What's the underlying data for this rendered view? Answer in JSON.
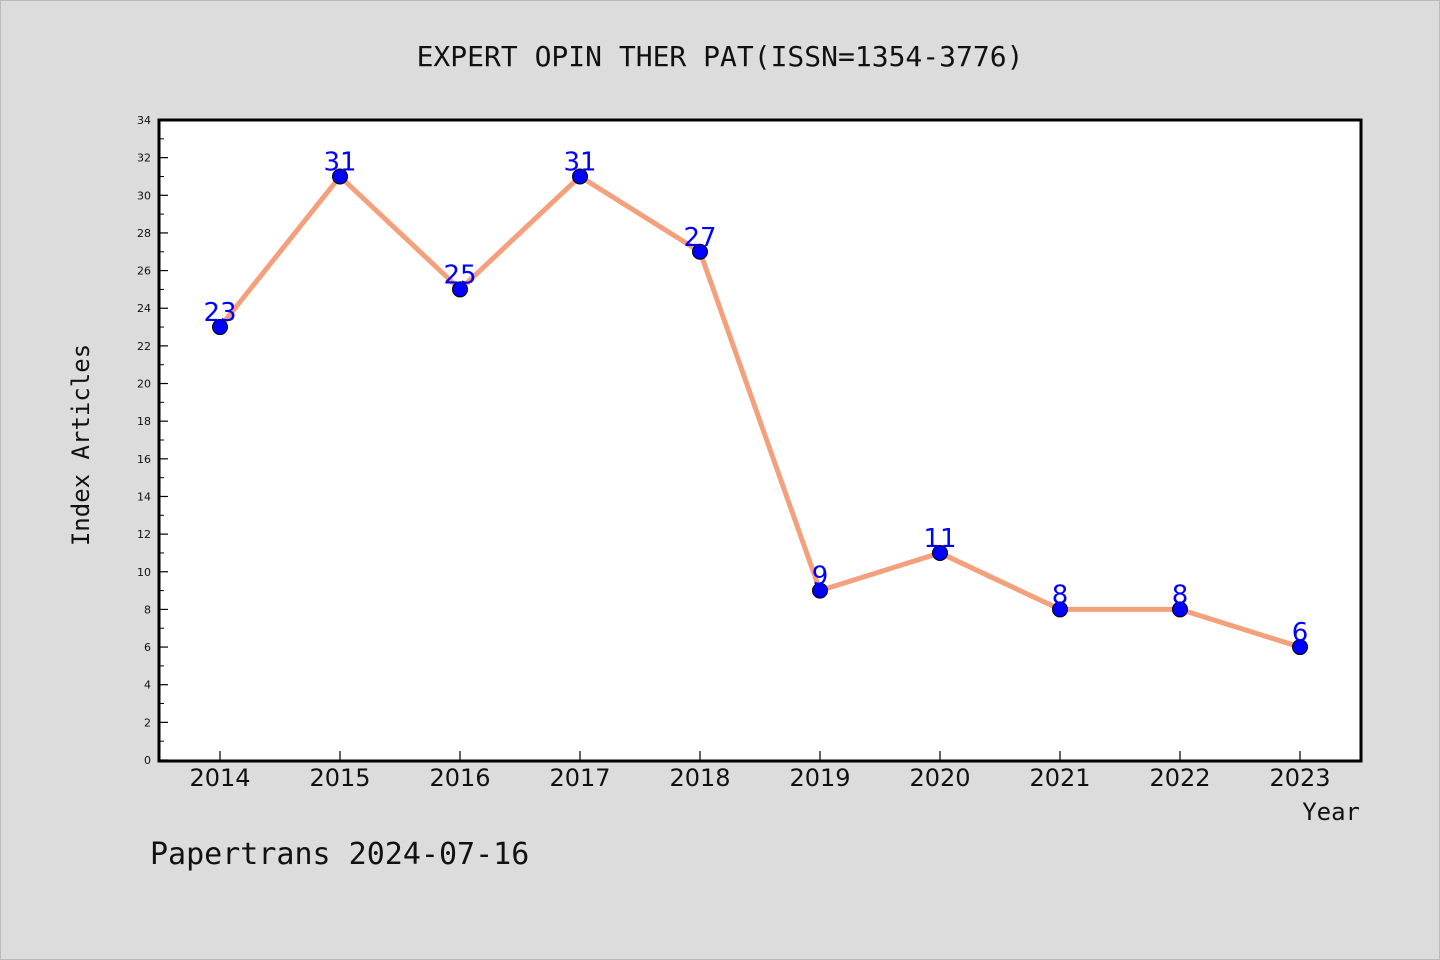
{
  "chart_data": {
    "type": "line",
    "title": "EXPERT OPIN THER PAT(ISSN=1354-3776)",
    "xlabel": "Year",
    "ylabel": "Index Articles",
    "categories": [
      "2014",
      "2015",
      "2016",
      "2017",
      "2018",
      "2019",
      "2020",
      "2021",
      "2022",
      "2023"
    ],
    "values": [
      23,
      31,
      25,
      31,
      27,
      9,
      11,
      8,
      8,
      6
    ],
    "ylim": [
      0,
      34
    ],
    "yticks": [
      0,
      2,
      4,
      6,
      8,
      10,
      12,
      14,
      16,
      18,
      20,
      22,
      24,
      26,
      28,
      30,
      32,
      34
    ],
    "grid": false,
    "legend": "none",
    "line_color": "#f4a07c",
    "marker_color": "#0000ff",
    "label_color": "#0000ff"
  },
  "footer": {
    "text": "Papertrans 2024-07-16"
  }
}
